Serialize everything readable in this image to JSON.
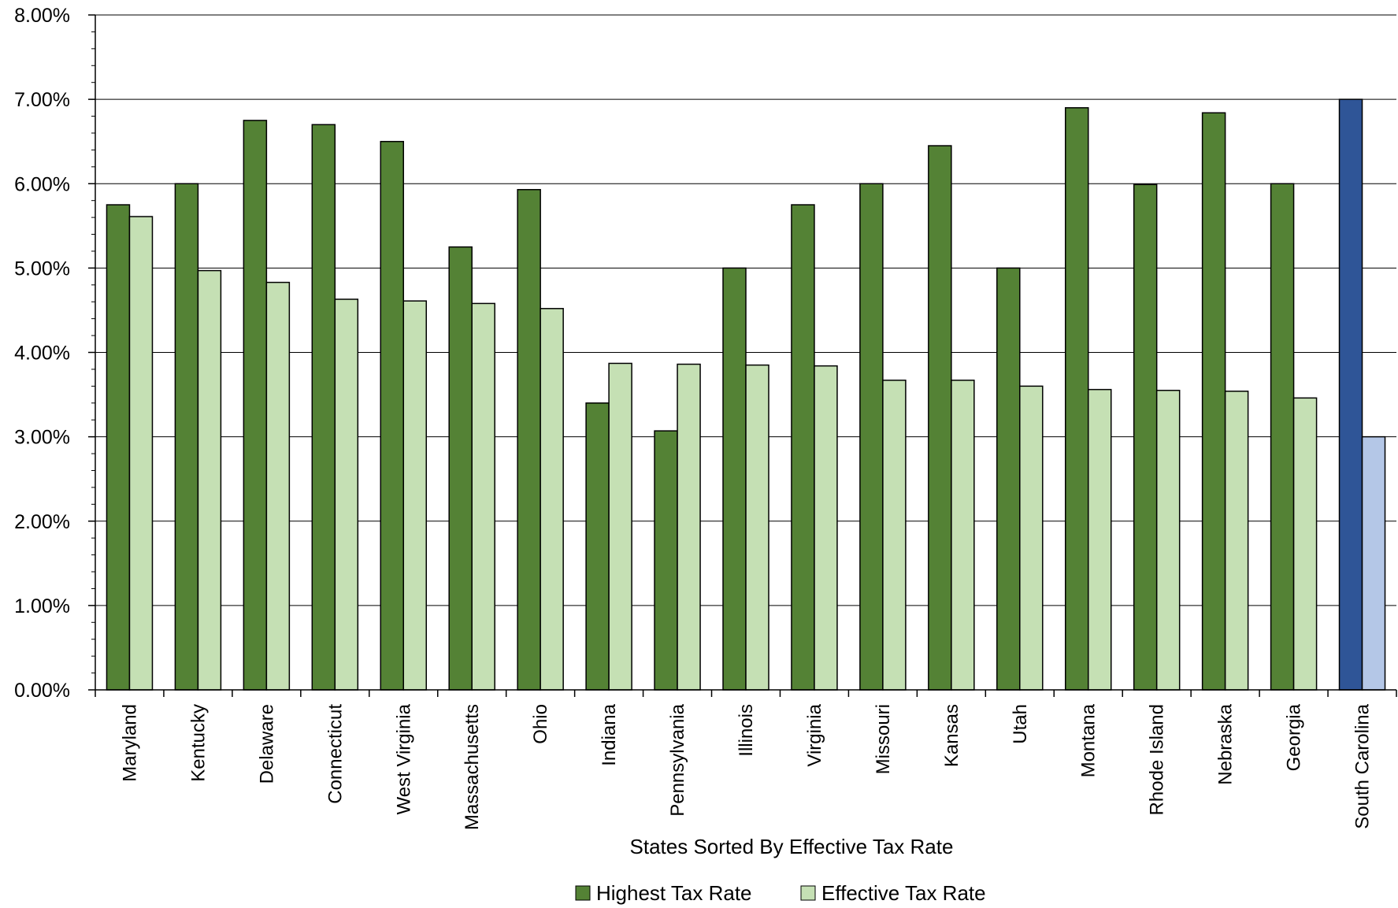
{
  "chart_data": {
    "type": "bar",
    "title": "",
    "xlabel": "States Sorted By Effective Tax Rate",
    "ylabel": "",
    "ylim": [
      0,
      8
    ],
    "y_ticks": [
      "0.00%",
      "1.00%",
      "2.00%",
      "3.00%",
      "4.00%",
      "5.00%",
      "6.00%",
      "7.00%",
      "8.00%"
    ],
    "grid": true,
    "legend_position": "bottom",
    "categories": [
      "Maryland",
      "Kentucky",
      "Delaware",
      "Connecticut",
      "West Virginia",
      "Massachusetts",
      "Ohio",
      "Indiana",
      "Pennsylvania",
      "Illinois",
      "Virginia",
      "Missouri",
      "Kansas",
      "Utah",
      "Montana",
      "Rhode Island",
      "Nebraska",
      "Georgia",
      "South Carolina"
    ],
    "series": [
      {
        "name": "Highest Tax Rate",
        "color": "#548235",
        "values": [
          5.75,
          6.0,
          6.75,
          6.7,
          6.5,
          5.25,
          5.93,
          3.4,
          3.07,
          5.0,
          5.75,
          6.0,
          6.45,
          5.0,
          6.9,
          5.99,
          6.84,
          6.0,
          7.0
        ]
      },
      {
        "name": "Effective Tax Rate",
        "color": "#C5E0B4",
        "values": [
          5.61,
          4.97,
          4.83,
          4.63,
          4.61,
          4.58,
          4.52,
          3.87,
          3.86,
          3.85,
          3.84,
          3.67,
          3.67,
          3.6,
          3.56,
          3.55,
          3.54,
          3.46,
          3.0
        ]
      }
    ],
    "highlight": {
      "category": "South Carolina",
      "colors": [
        "#2F5597",
        "#B4C7E7"
      ]
    }
  }
}
